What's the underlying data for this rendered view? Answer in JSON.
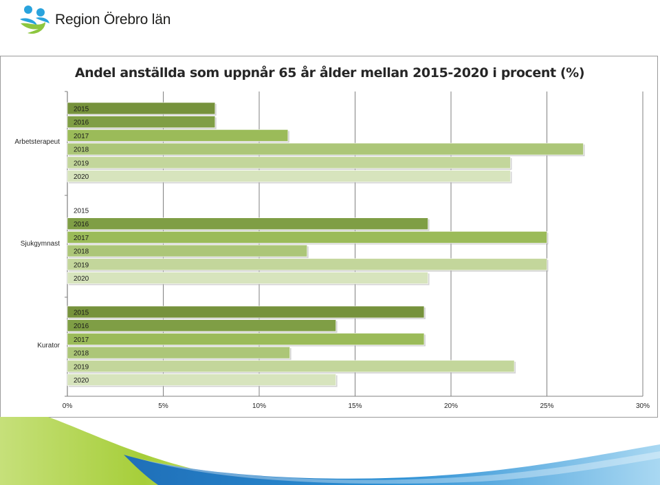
{
  "header": {
    "logo_text": "Region Örebro län"
  },
  "colors": {
    "2015": "#76923c",
    "2016": "#7f9e45",
    "2017": "#9bbb59",
    "2018": "#acc678",
    "2019": "#c3d69b",
    "2020": "#d7e4bd",
    "grid": "#7f7f7f",
    "logo_blue": "#29a3dd",
    "logo_green": "#8dc63f",
    "footer_green": "#a6ce39",
    "footer_blue": "#2b8fd4"
  },
  "chart_data": {
    "type": "bar",
    "orientation": "horizontal",
    "title": "Andel anställda som uppnår 65 år ålder mellan 2015-2020 i procent (%)",
    "xlabel": "",
    "ylabel": "",
    "xlim": [
      0,
      30
    ],
    "x_ticks": [
      "0%",
      "5%",
      "10%",
      "15%",
      "20%",
      "25%",
      "30%"
    ],
    "grid": true,
    "series_labels_on_bars": true,
    "groups": [
      {
        "category": "Arbetsterapeut",
        "bars": [
          {
            "year": "2015",
            "value": 7.7
          },
          {
            "year": "2016",
            "value": 7.7
          },
          {
            "year": "2017",
            "value": 11.5
          },
          {
            "year": "2018",
            "value": 26.9
          },
          {
            "year": "2019",
            "value": 23.1
          },
          {
            "year": "2020",
            "value": 23.1
          }
        ]
      },
      {
        "category": "Sjukgymnast",
        "bars": [
          {
            "year": "2015",
            "value": 0
          },
          {
            "year": "2016",
            "value": 18.8
          },
          {
            "year": "2017",
            "value": 25.0
          },
          {
            "year": "2018",
            "value": 12.5
          },
          {
            "year": "2019",
            "value": 25.0
          },
          {
            "year": "2020",
            "value": 18.8
          }
        ]
      },
      {
        "category": "Kurator",
        "bars": [
          {
            "year": "2015",
            "value": 18.6
          },
          {
            "year": "2016",
            "value": 14.0
          },
          {
            "year": "2017",
            "value": 18.6
          },
          {
            "year": "2018",
            "value": 11.6
          },
          {
            "year": "2019",
            "value": 23.3
          },
          {
            "year": "2020",
            "value": 14.0
          }
        ]
      }
    ]
  }
}
